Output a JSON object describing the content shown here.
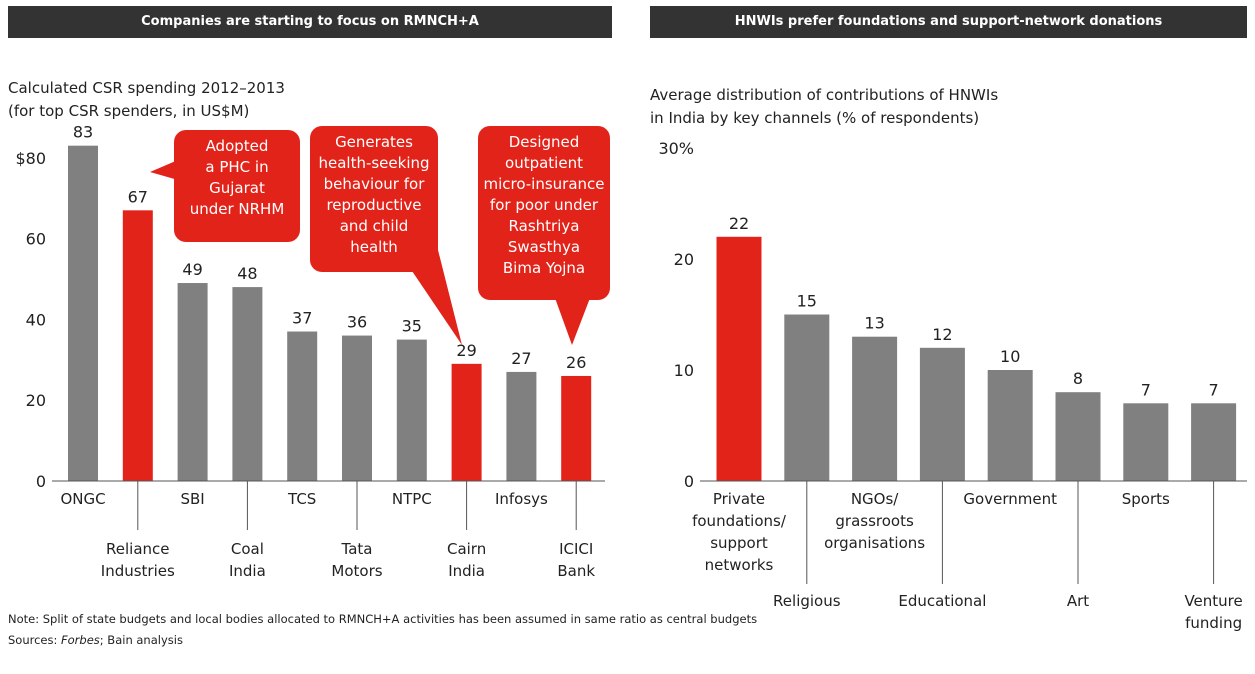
{
  "chart_data": [
    {
      "type": "bar",
      "header": "Companies are starting  to focus on RMNCH+A",
      "title": "Calculated CSR spending 2012–2013\n(for top CSR spenders, in US$M)",
      "categories": [
        "ONGC",
        "Reliance\nIndustries",
        "SBI",
        "Coal\nIndia",
        "TCS",
        "Tata\nMotors",
        "NTPC",
        "Cairn\nIndia",
        "Infosys",
        "ICICI\nBank"
      ],
      "values": [
        83,
        67,
        49,
        48,
        37,
        36,
        35,
        29,
        27,
        26
      ],
      "colors": [
        "#808080",
        "#e2231a",
        "#808080",
        "#808080",
        "#808080",
        "#808080",
        "#808080",
        "#e2231a",
        "#808080",
        "#e2231a"
      ],
      "ylim": [
        0,
        90
      ],
      "yticks": [
        0,
        20,
        40,
        60,
        {
          "value": 80,
          "label": "$80"
        }
      ],
      "annotations": [
        "Adopted\na PHC in\nGujarat\nunder NRHM",
        "Generates\nhealth-seeking\nbehaviour for\nreproductive\nand child health",
        "Designed\noutpatient\nmicro-insurance\nfor poor under\nRashtriya\nSwasthya\nBima Yojna"
      ]
    },
    {
      "type": "bar",
      "header": "HNWIs prefer foundations and support-network donations",
      "title": "Average distribution of contributions of HNWIs\nin India by key channels (% of respondents)",
      "categories": [
        "Private\nfoundations/\nsupport\nnetworks",
        "Religious",
        "NGOs/\ngrassroots\norganisations",
        "Educational",
        "Government",
        "Art",
        "Sports",
        "Venture\nfunding"
      ],
      "values": [
        22,
        15,
        13,
        12,
        10,
        8,
        7,
        7
      ],
      "colors": [
        "#e2231a",
        "#808080",
        "#808080",
        "#808080",
        "#808080",
        "#808080",
        "#808080",
        "#808080"
      ],
      "ylim": [
        0,
        30
      ],
      "yticks": [
        0,
        10,
        20,
        {
          "value": 30,
          "label": "30%"
        }
      ]
    }
  ],
  "footer": {
    "note": "Note: Split of state budgets and local bodies allocated to RMNCH+A activities has been assumed in same ratio as central budgets",
    "sources_label": "Sources: ",
    "sources_italic": "Forbes",
    "sources_rest": "; Bain analysis"
  }
}
